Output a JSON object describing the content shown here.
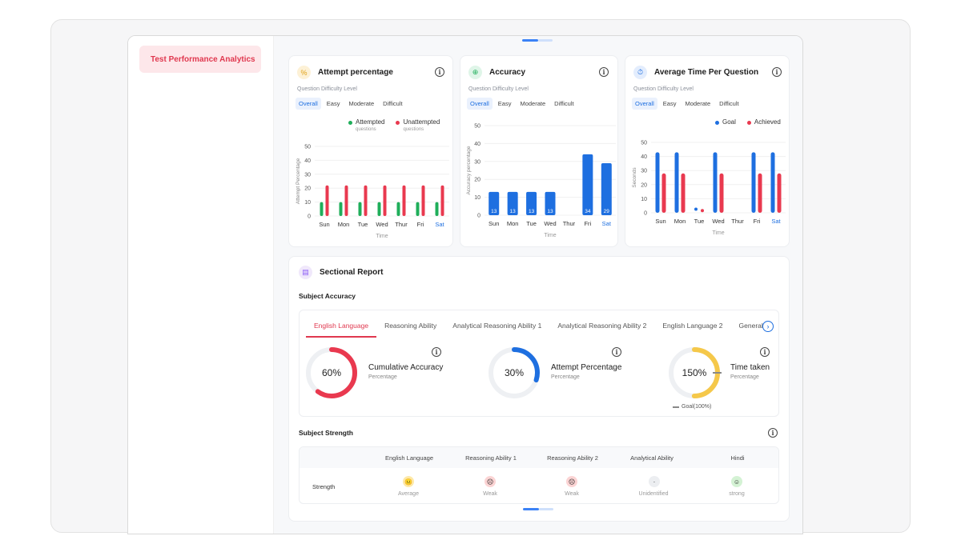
{
  "sidebar": {
    "active_item": "Test Performance Analytics"
  },
  "colors": {
    "accent_red": "#e9394f",
    "accent_blue": "#1e6fe0",
    "accent_green": "#1fae5a",
    "accent_yellow": "#f5c84a"
  },
  "attempt_card": {
    "title": "Attempt percentage",
    "difficulty_label": "Question Difficulty Level",
    "tabs": [
      "Overall",
      "Easy",
      "Moderate",
      "Difficult"
    ],
    "legend": [
      {
        "name": "Attempted",
        "sub": "questions"
      },
      {
        "name": "Unattempted",
        "sub": "questions"
      }
    ],
    "ylabel": "Attempt Percentage",
    "xlabel": "Time"
  },
  "accuracy_card": {
    "title": "Accuracy",
    "difficulty_label": "Question Difficulty Level",
    "tabs": [
      "Overall",
      "Easy",
      "Moderate",
      "Difficult"
    ],
    "ylabel": "Accuracy percentage",
    "xlabel": "Time"
  },
  "time_card": {
    "title": "Average Time Per Question",
    "difficulty_label": "Question Difficulty Level",
    "tabs": [
      "Overall",
      "Easy",
      "Moderate",
      "Difficult"
    ],
    "legend": [
      {
        "name": "Goal"
      },
      {
        "name": "Achieved"
      }
    ],
    "ylabel": "Seconds",
    "xlabel": "Time"
  },
  "chart_data": [
    {
      "type": "bar",
      "categories": [
        "Sun",
        "Mon",
        "Tue",
        "Wed",
        "Thur",
        "Fri",
        "Sat"
      ],
      "series": [
        {
          "name": "Attempted",
          "values": [
            10,
            10,
            10,
            10,
            10,
            10,
            10
          ]
        },
        {
          "name": "Unattempted",
          "values": [
            22,
            22,
            22,
            22,
            22,
            22,
            22
          ]
        }
      ],
      "ylim": [
        0,
        50
      ],
      "yticks": [
        0,
        10,
        20,
        30,
        40,
        50
      ],
      "ylabel": "Attempt Percentage",
      "xlabel": "Time"
    },
    {
      "type": "bar",
      "categories": [
        "Sun",
        "Mon",
        "Tue",
        "Wed",
        "Thur",
        "Fri",
        "Sat"
      ],
      "values": [
        13,
        13,
        13,
        13,
        null,
        34,
        29
      ],
      "bar_labels": [
        "13",
        "13",
        "13",
        "13",
        "",
        "34",
        "29"
      ],
      "ylim": [
        0,
        50
      ],
      "yticks": [
        0,
        10,
        20,
        30,
        40,
        50
      ],
      "ylabel": "Accuracy percentage",
      "xlabel": "Time"
    },
    {
      "type": "bar",
      "categories": [
        "Sun",
        "Mon",
        "Tue",
        "Wed",
        "Thur",
        "Fri",
        "Sat"
      ],
      "series": [
        {
          "name": "Goal",
          "values": [
            43,
            43,
            2,
            43,
            null,
            43,
            43
          ]
        },
        {
          "name": "Achieved",
          "values": [
            28,
            28,
            1,
            28,
            null,
            28,
            28
          ]
        }
      ],
      "ylim": [
        0,
        50
      ],
      "yticks": [
        0,
        10,
        20,
        30,
        40,
        50
      ],
      "ylabel": "Seconds",
      "xlabel": "Time"
    }
  ],
  "sectional": {
    "title": "Sectional Report",
    "subject_accuracy_title": "Subject Accuracy",
    "tabs": [
      "English Language",
      "Reasoning Ability",
      "Analytical Reasoning Ability 1",
      "Analytical Reasoning Ability 2",
      "English Language 2",
      "General"
    ],
    "metrics": [
      {
        "value_text": "60%",
        "value": 60,
        "title": "Cumulative Accuracy",
        "sub": "Percentage",
        "color": "#e9394f"
      },
      {
        "value_text": "30%",
        "value": 30,
        "title": "Attempt Percentage",
        "sub": "Percentage",
        "color": "#1e6fe0"
      },
      {
        "value_text": "150%",
        "value": 150,
        "title": "Time taken",
        "sub": "Percentage",
        "color": "#f5c84a",
        "goal_label": "Goal(100%)"
      }
    ],
    "strength_title": "Subject Strength",
    "strength_columns": [
      "English Language",
      "Reasoning Ability 1",
      "Reasoning Ability 2",
      "Analytical Ability",
      "Hindi"
    ],
    "strength_row_label": "Strength",
    "strength_values": [
      "Average",
      "Weak",
      "Weak",
      "Unidentified",
      "strong"
    ]
  }
}
